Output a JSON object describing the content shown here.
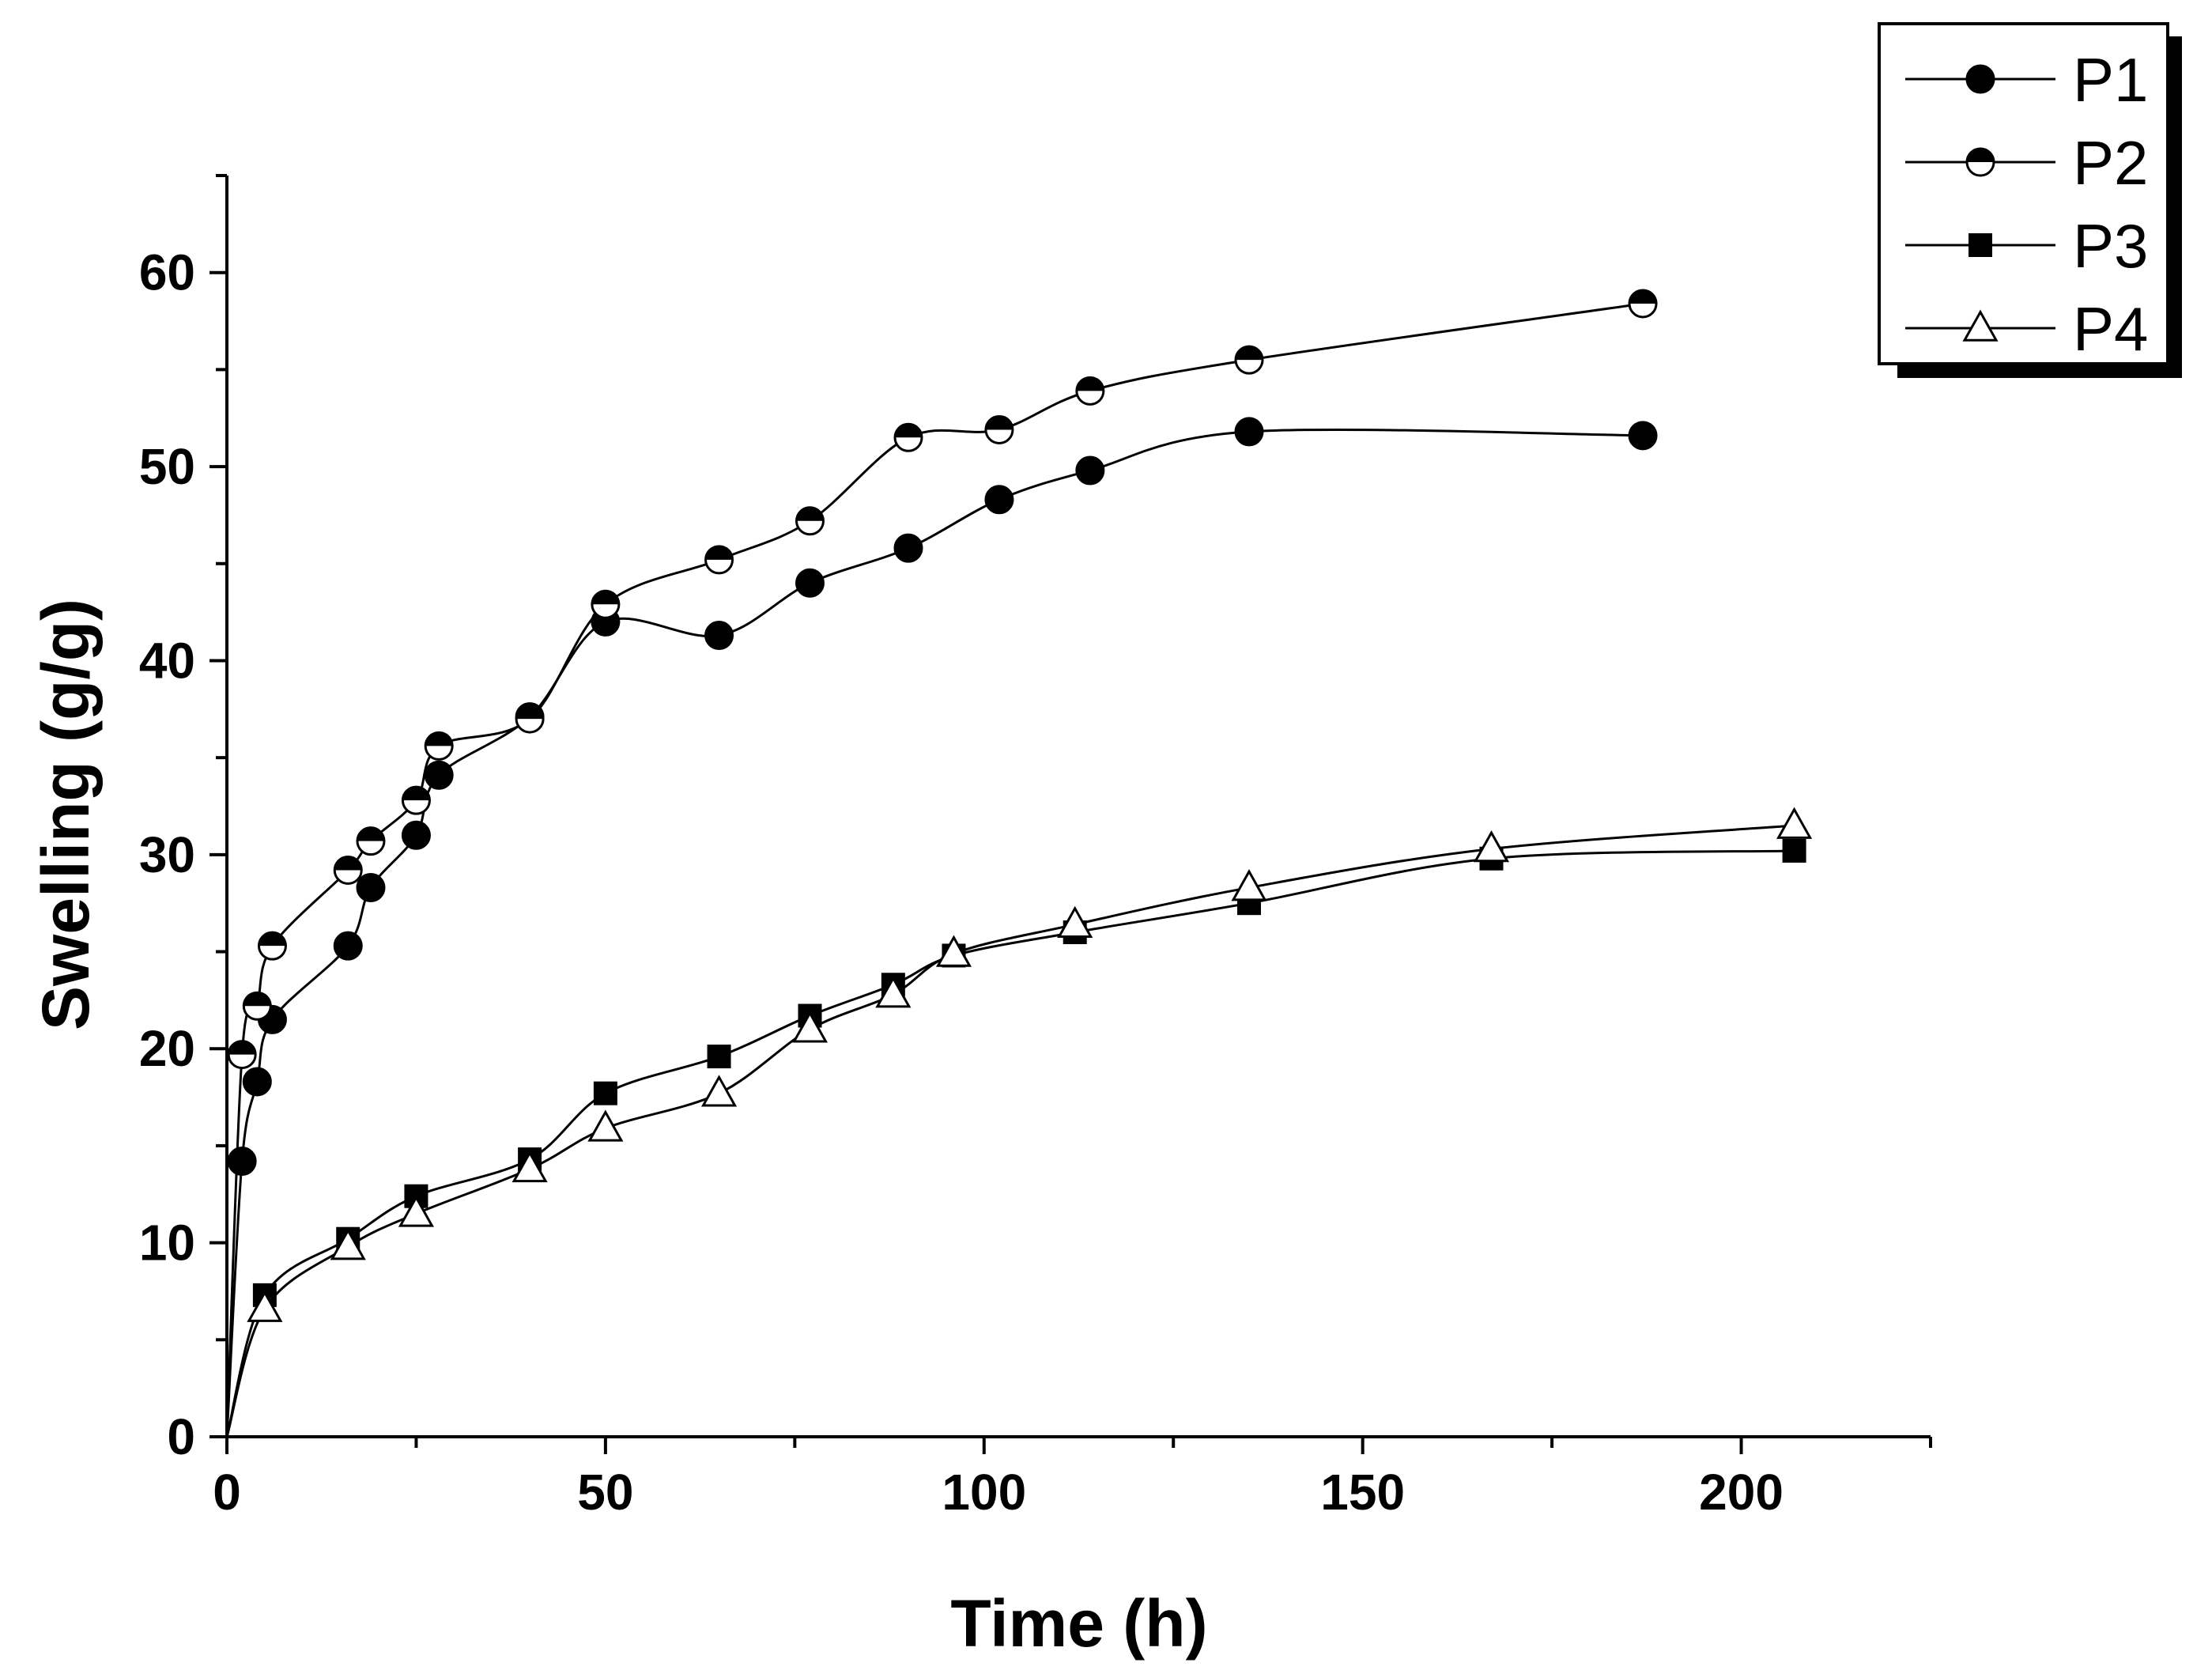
{
  "chart_data": {
    "type": "line",
    "title": "",
    "xlabel": "Time (h)",
    "ylabel": "Swelling (g/g)",
    "xlim": [
      0,
      225
    ],
    "ylim": [
      0,
      65
    ],
    "xticks": [
      0,
      50,
      100,
      150,
      200
    ],
    "yticks": [
      0,
      10,
      20,
      30,
      40,
      50,
      60
    ],
    "legend_position": "top-right",
    "series": [
      {
        "name": "P1",
        "marker": "filled-circle",
        "x": [
          0,
          2,
          4,
          6,
          16,
          19,
          25,
          28,
          40,
          50,
          65,
          77,
          90,
          102,
          114,
          135,
          187
        ],
        "y": [
          0,
          14.2,
          18.3,
          21.5,
          25.3,
          28.3,
          31.0,
          34.1,
          37.1,
          42.0,
          41.3,
          44.0,
          45.8,
          48.3,
          49.8,
          51.8,
          51.6
        ]
      },
      {
        "name": "P2",
        "marker": "half-filled-circle",
        "x": [
          0,
          2,
          4,
          6,
          16,
          19,
          25,
          28,
          40,
          50,
          65,
          77,
          90,
          102,
          114,
          135,
          187
        ],
        "y": [
          0,
          19.7,
          22.2,
          25.3,
          29.2,
          30.7,
          32.8,
          35.6,
          37.0,
          42.9,
          45.2,
          47.2,
          51.5,
          51.9,
          53.9,
          55.5,
          58.4
        ]
      },
      {
        "name": "P3",
        "marker": "filled-square",
        "x": [
          0,
          5,
          16,
          25,
          40,
          50,
          65,
          77,
          88,
          96,
          112,
          135,
          167,
          207
        ],
        "y": [
          0,
          7.3,
          10.2,
          12.4,
          14.3,
          17.7,
          19.6,
          21.7,
          23.3,
          24.8,
          26.0,
          27.5,
          29.8,
          30.2
        ]
      },
      {
        "name": "P4",
        "marker": "open-triangle",
        "x": [
          0,
          5,
          16,
          25,
          40,
          50,
          65,
          77,
          88,
          96,
          112,
          135,
          167,
          207
        ],
        "y": [
          0,
          6.6,
          9.8,
          11.5,
          13.8,
          15.9,
          17.7,
          21.0,
          22.8,
          24.9,
          26.4,
          28.3,
          30.3,
          31.5
        ]
      }
    ]
  },
  "colors": {
    "ink": "#000000",
    "background": "#ffffff"
  }
}
